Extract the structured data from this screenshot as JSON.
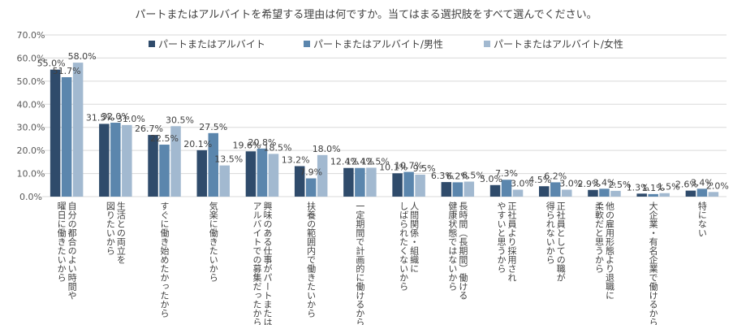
{
  "chart_data": {
    "type": "bar",
    "title": "パートまたはアルバイトを希望する理由は何ですか。当てはまる選択肢をすべて選んでください。",
    "xlabel": "",
    "ylabel": "",
    "ylim": [
      0,
      70
    ],
    "yticks": [
      "0.0%",
      "10.0%",
      "20.0%",
      "30.0%",
      "40.0%",
      "50.0%",
      "60.0%",
      "70.0%"
    ],
    "grid": true,
    "legend_position": "top",
    "categories": [
      [
        "自分の都合のよい時間や",
        "曜日に働きたいから"
      ],
      [
        "生活との両立を",
        "図りたいから"
      ],
      [
        "すぐに働き始めたかったから"
      ],
      [
        "気楽に働きたいから"
      ],
      [
        "興味のある仕事がパートまたは",
        "アルバイトでの募集だったから"
      ],
      [
        "扶養の範囲内で働きたいから"
      ],
      [
        "一定期間で計画的に働けるから"
      ],
      [
        "人間関係・組織に",
        "しばられたくないから"
      ],
      [
        "長時間（長期間）働ける",
        "健康状態ではないから"
      ],
      [
        "正社員より採用され",
        "やすいと思うから"
      ],
      [
        "正社員としての職が",
        "得られないから"
      ],
      [
        "他の雇用形態より退職に",
        "柔軟だと思うから"
      ],
      [
        "大企業・有名企業で働けるから"
      ],
      [
        "特にない"
      ]
    ],
    "series": [
      {
        "name": "パートまたはアルバイト",
        "color": "#2f4b6b",
        "values": [
          55.0,
          31.5,
          26.7,
          20.1,
          19.6,
          13.2,
          12.4,
          10.1,
          6.3,
          5.0,
          4.5,
          2.9,
          1.3,
          2.6
        ],
        "labels": [
          "55.0%",
          "31.5%",
          "26.7%",
          "20.1%",
          "19.6%",
          "13.2%",
          "12.4%",
          "10.1%",
          "6.3%",
          "5.0%",
          "4.5%",
          "2.9%",
          "1.3%",
          "2.6%"
        ]
      },
      {
        "name": "パートまたはアルバイト/男性",
        "color": "#5b86ad",
        "values": [
          51.7,
          32.0,
          22.5,
          27.5,
          20.8,
          7.9,
          12.4,
          10.7,
          6.2,
          7.3,
          6.2,
          3.4,
          1.1,
          3.4
        ],
        "labels": [
          "51.7%",
          "32.0%",
          "22.5%",
          "27.5%",
          "20.8%",
          "7.9%",
          "12.4%",
          "10.7%",
          "6.2%",
          "7.3%",
          "6.2%",
          "3.4%",
          "1.1%",
          "3.4%"
        ]
      },
      {
        "name": "パートまたはアルバイト/女性",
        "color": "#a2b9d0",
        "values": [
          58.0,
          31.0,
          30.5,
          13.5,
          18.5,
          18.0,
          12.5,
          9.5,
          6.5,
          3.0,
          3.0,
          2.5,
          1.5,
          2.0
        ],
        "labels": [
          "58.0%",
          "31.0%",
          "30.5%",
          "13.5%",
          "18.5%",
          "18.0%",
          "12.5%",
          "9.5%",
          "6.5%",
          "3.0%",
          "3.0%",
          "2.5%",
          "1.5%",
          "2.0%"
        ]
      }
    ]
  }
}
